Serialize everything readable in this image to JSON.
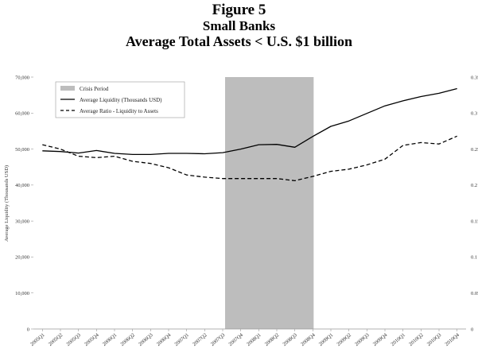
{
  "figure_label": "Figure 5",
  "subtitle": "Small Banks",
  "title": "Average Total Assets < U.S. $1 billion",
  "chart_data": {
    "type": "line",
    "x": [
      "2005Q1",
      "2005Q2",
      "2005Q3",
      "2005Q4",
      "2006Q1",
      "2006Q2",
      "2006Q3",
      "2006Q4",
      "2007Q1",
      "2007Q2",
      "2007Q3",
      "2007Q4",
      "2008Q1",
      "2008Q2",
      "2008Q3",
      "2008Q4",
      "2009Q1",
      "2009Q2",
      "2009Q3",
      "2009Q4",
      "2010Q1",
      "2010Q2",
      "2010Q3",
      "2010Q4"
    ],
    "ylabel": "Average Liquidity (Thousands USD)",
    "ylim": [
      0,
      70000
    ],
    "yticks": [
      "0",
      "10,000",
      "20,000",
      "30,000",
      "40,000",
      "50,000",
      "60,000",
      "70,000"
    ],
    "y2lim": [
      0,
      0.35
    ],
    "y2ticks": [
      "0",
      "0.05",
      "0.1",
      "0.15",
      "0.2",
      "0.25",
      "0.3",
      "0.35"
    ],
    "shaded_region": {
      "name": "Crisis Period",
      "start": "2007Q3",
      "end": "2008Q4",
      "color": "#bdbdbd"
    },
    "legend_position": "top-left",
    "series": [
      {
        "name": "Average Liquidity (Thousands USD)",
        "axis": "left",
        "style": "solid",
        "values": [
          49500,
          49300,
          48900,
          49600,
          48800,
          48500,
          48500,
          48800,
          48800,
          48700,
          49000,
          50000,
          51200,
          51300,
          50500,
          53500,
          56300,
          57800,
          59900,
          62000,
          63400,
          64600,
          65500,
          66800
        ]
      },
      {
        "name": "Average Ratio - Liquidity to Assets",
        "axis": "right",
        "style": "dashed",
        "values": [
          0.256,
          0.25,
          0.24,
          0.238,
          0.24,
          0.233,
          0.23,
          0.224,
          0.214,
          0.211,
          0.209,
          0.209,
          0.209,
          0.209,
          0.206,
          0.212,
          0.219,
          0.222,
          0.228,
          0.236,
          0.255,
          0.259,
          0.257,
          0.268
        ]
      }
    ]
  },
  "colors": {
    "line": "#000000",
    "shade": "#bdbdbd",
    "axis": "#999999"
  }
}
